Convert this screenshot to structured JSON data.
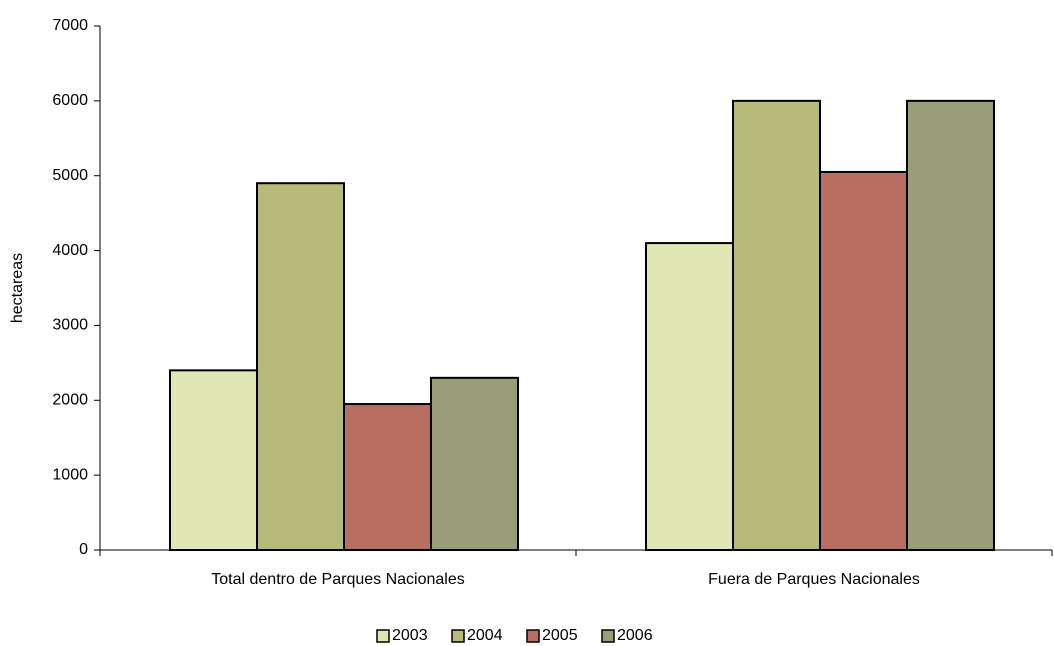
{
  "chart_data": {
    "type": "bar",
    "ylabel": "hectareas",
    "categories": [
      "Total dentro de Parques Nacionales",
      "Fuera de Parques Nacionales"
    ],
    "series": [
      {
        "name": "2003",
        "color": "#e0e6b4",
        "values": [
          2400,
          4100
        ]
      },
      {
        "name": "2004",
        "color": "#b8ba7a",
        "values": [
          4900,
          6000
        ]
      },
      {
        "name": "2005",
        "color": "#b86e60",
        "values": [
          1950,
          5050
        ]
      },
      {
        "name": "2006",
        "color": "#999e78",
        "values": [
          2300,
          6000
        ]
      }
    ],
    "ylim": [
      0,
      7000
    ],
    "yticks": [
      0,
      1000,
      2000,
      3000,
      4000,
      5000,
      6000,
      7000
    ],
    "grid": false,
    "legend": "bottom"
  }
}
